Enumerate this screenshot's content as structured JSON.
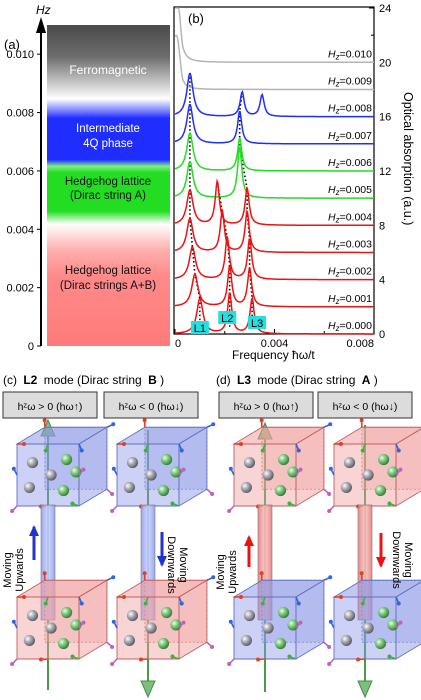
{
  "panel_a": {
    "label": "(a)",
    "axis_label": "Hz",
    "yticks": [
      "0.010",
      "0.008",
      "0.006",
      "0.004",
      "0.002",
      "0"
    ],
    "phases": [
      {
        "name": "Ferromagnetic"
      },
      {
        "name_line1": "Intermediate",
        "name_line2": "4Q phase"
      },
      {
        "name_line1": "Hedgehog lattice",
        "name_line2": "(Dirac string A)"
      },
      {
        "name_line1": "Hedgehog lattice",
        "name_line2": "(Dirac strings A+B)"
      }
    ],
    "colors": {
      "ferro": "#4d4d4d",
      "intermediate": "#1f2eff",
      "hedgehog_a": "#22dd22",
      "hedgehog_ab": "#ff8a8a"
    }
  },
  "panel_b": {
    "label": "(b)",
    "xlabel": "Frequency ħω/t",
    "ylabel": "Optical absorption (a.u.)",
    "xticks": [
      "0",
      "0.004",
      "0.008"
    ],
    "yticks_right": [
      "0",
      "4",
      "8",
      "12",
      "16",
      "20",
      "24"
    ],
    "mode_labels": [
      "L1",
      "L2",
      "L3"
    ],
    "mode_label_color": "#22e0e0"
  },
  "chart_data": {
    "type": "line",
    "xlabel": "Frequency ħω/t",
    "ylabel": "Optical absorption (a.u.)",
    "xlim": [
      0,
      0.008
    ],
    "ylim": [
      0,
      24
    ],
    "series": [
      {
        "name": "Hz=0.010",
        "color": "#b4b4b4",
        "offset": 20,
        "peaks": [
          [
            0.0001,
            3.5,
            0.0003
          ]
        ]
      },
      {
        "name": "Hz=0.009",
        "color": "#b4b4b4",
        "offset": 18,
        "peaks": [
          [
            0.0001,
            2.2,
            0.0003
          ]
        ]
      },
      {
        "name": "Hz=0.008",
        "color": "#1f2eff",
        "offset": 16,
        "peaks": [
          [
            0.0006,
            3.2,
            0.0003
          ],
          [
            0.0027,
            1.8,
            0.0002
          ],
          [
            0.0035,
            1.6,
            0.0002
          ]
        ]
      },
      {
        "name": "Hz=0.007",
        "color": "#1f2eff",
        "offset": 14,
        "peaks": [
          [
            0.0006,
            2.9,
            0.0003
          ],
          [
            0.0026,
            2.4,
            0.0002
          ]
        ]
      },
      {
        "name": "Hz=0.006",
        "color": "#22dd22",
        "offset": 12,
        "peaks": [
          [
            0.0006,
            2.8,
            0.0003
          ],
          [
            0.0026,
            2.4,
            0.0002
          ]
        ]
      },
      {
        "name": "Hz=0.005",
        "color": "#22dd22",
        "offset": 10,
        "peaks": [
          [
            0.0006,
            2.7,
            0.0003
          ],
          [
            0.0026,
            3.8,
            0.0002
          ]
        ]
      },
      {
        "name": "Hz=0.004",
        "color": "#ee1111",
        "offset": 8,
        "peaks": [
          [
            0.0006,
            2.6,
            0.0003
          ],
          [
            0.0017,
            3.2,
            0.0002
          ],
          [
            0.0029,
            2.7,
            0.0002
          ]
        ]
      },
      {
        "name": "Hz=0.003",
        "color": "#ee1111",
        "offset": 6,
        "peaks": [
          [
            0.0006,
            2.5,
            0.0003
          ],
          [
            0.0019,
            3.0,
            0.0002
          ],
          [
            0.0029,
            3.0,
            0.0002
          ]
        ]
      },
      {
        "name": "Hz=0.002",
        "color": "#ee1111",
        "offset": 4,
        "peaks": [
          [
            0.0007,
            2.4,
            0.0003
          ],
          [
            0.0021,
            3.1,
            0.0002
          ],
          [
            0.003,
            3.0,
            0.0002
          ]
        ]
      },
      {
        "name": "Hz=0.001",
        "color": "#ee1111",
        "offset": 2,
        "peaks": [
          [
            0.0008,
            2.4,
            0.0003
          ],
          [
            0.0022,
            3.0,
            0.0002
          ],
          [
            0.003,
            2.8,
            0.0002
          ]
        ]
      },
      {
        "name": "Hz=0.000",
        "color": "#ee1111",
        "offset": 0,
        "peaks": [
          [
            0.001,
            2.6,
            0.0003
          ],
          [
            0.0022,
            3.0,
            0.0002
          ],
          [
            0.0031,
            2.6,
            0.0002
          ]
        ]
      }
    ]
  },
  "panel_c": {
    "label_prefix": "(c)",
    "mode": "L2",
    "mode_suffix": "mode (Dirac string",
    "string": "B",
    "close": ")",
    "box_left": "hᶻω > 0 (hω↑)",
    "box_right": "hᶻω < 0 (hω↓)",
    "side_left_1": "Moving",
    "side_left_2": "Upwards",
    "side_right_1": "Moving",
    "side_right_2": "Downwards"
  },
  "panel_d": {
    "label_prefix": "(d)",
    "mode": "L3",
    "mode_suffix": "mode (Dirac string",
    "string": "A",
    "close": ")",
    "box_left": "hᶻω > 0 (hω↑)",
    "box_right": "hᶻω < 0 (hω↓)",
    "side_left_1": "Moving",
    "side_left_2": "Upwards",
    "side_right_1": "Moving",
    "side_right_2": "Downwards"
  }
}
